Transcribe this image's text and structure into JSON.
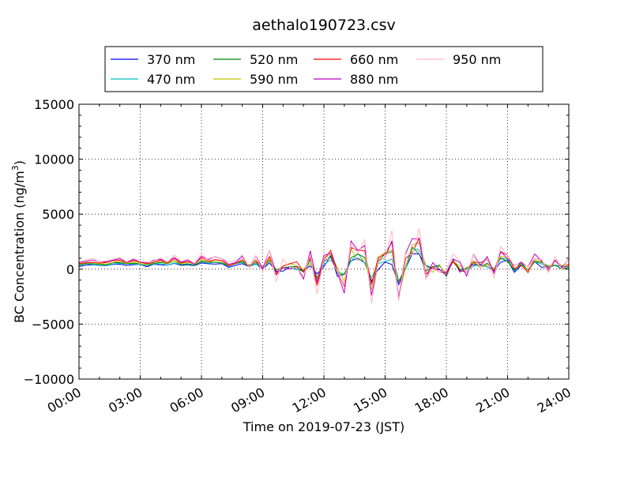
{
  "chart_data": {
    "type": "line",
    "title": "aethalo190723.csv",
    "xlabel": "Time on 2019-07-23 (JST)",
    "ylabel": "BC Concentration (ng/m",
    "ylabel_sup": "3",
    "ylabel_close": ")",
    "xlim_hours": [
      0,
      24
    ],
    "ylim": [
      -10000,
      15000
    ],
    "x_ticks": [
      "00:00",
      "03:00",
      "06:00",
      "09:00",
      "12:00",
      "15:00",
      "18:00",
      "21:00",
      "24:00"
    ],
    "y_ticks": [
      "15000",
      "10000",
      "5000",
      "0",
      "−5000",
      "−10000"
    ],
    "y_tick_values": [
      15000,
      10000,
      5000,
      0,
      -5000,
      -10000
    ],
    "grid": true,
    "legend_placement": "top-center, above plot",
    "sample_interval_minutes": 20,
    "series": [
      {
        "name": "370 nm",
        "color": "#0000ff",
        "scale": 0.55,
        "phase": 0.0
      },
      {
        "name": "470 nm",
        "color": "#00bfbf",
        "scale": 0.65,
        "phase": 0.3
      },
      {
        "name": "520 nm",
        "color": "#008000",
        "scale": 0.75,
        "phase": 0.6
      },
      {
        "name": "590 nm",
        "color": "#bfbf00",
        "scale": 0.85,
        "phase": 0.9
      },
      {
        "name": "660 nm",
        "color": "#ff0000",
        "scale": 0.95,
        "phase": 1.2
      },
      {
        "name": "880 nm",
        "color": "#bf00bf",
        "scale": 1.15,
        "phase": 1.6
      },
      {
        "name": "950 nm",
        "color": "#ffb6c1",
        "scale": 1.25,
        "phase": 2.0
      }
    ],
    "envelope": [
      {
        "h": 0,
        "base": 600,
        "amp": 600
      },
      {
        "h": 3,
        "base": 700,
        "amp": 700
      },
      {
        "h": 6,
        "base": 700,
        "amp": 800
      },
      {
        "h": 8,
        "base": 600,
        "amp": 900
      },
      {
        "h": 9,
        "base": 500,
        "amp": 1500
      },
      {
        "h": 10,
        "base": 400,
        "amp": 3500
      },
      {
        "h": 11,
        "base": 300,
        "amp": 5000
      },
      {
        "h": 12,
        "base": 200,
        "amp": 4000
      },
      {
        "h": 13,
        "base": 300,
        "amp": 6500
      },
      {
        "h": 14,
        "base": 300,
        "amp": 5500
      },
      {
        "h": 15,
        "base": 200,
        "amp": 6500
      },
      {
        "h": 16,
        "base": 300,
        "amp": 7500
      },
      {
        "h": 17,
        "base": 300,
        "amp": 5500
      },
      {
        "h": 18,
        "base": 300,
        "amp": 3500
      },
      {
        "h": 20,
        "base": 400,
        "amp": 3000
      },
      {
        "h": 22,
        "base": 400,
        "amp": 2500
      },
      {
        "h": 24,
        "base": 400,
        "amp": 2300
      }
    ]
  }
}
